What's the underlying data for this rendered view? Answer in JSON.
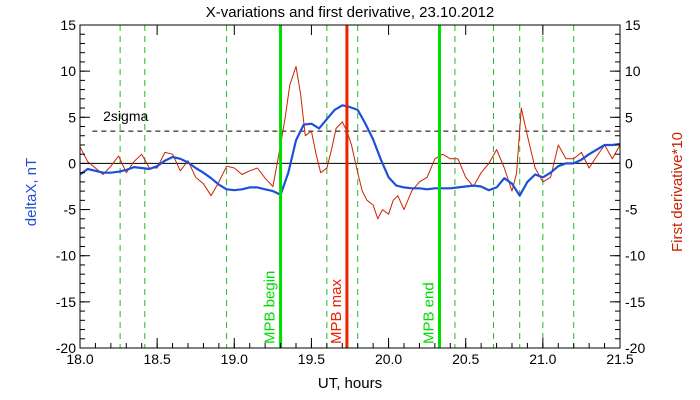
{
  "chart_data": {
    "type": "line",
    "title": "X-variations and first derivative, 23.10.2012",
    "xlabel": "UT, hours",
    "ylabel_left": "deltaX, nT",
    "ylabel_right": "First derivative*10",
    "xlim": [
      18.0,
      21.5
    ],
    "ylim": [
      -20,
      15
    ],
    "x_ticks": [
      18.0,
      18.5,
      19.0,
      19.5,
      20.0,
      20.5,
      21.0,
      21.5
    ],
    "x_tick_labels": [
      "18.0",
      "18.5",
      "19.0",
      "19.5",
      "20.0",
      "20.5",
      "21.0",
      "21.5"
    ],
    "y_ticks": [
      -20,
      -15,
      -10,
      -5,
      0,
      5,
      10,
      15
    ],
    "y_tick_labels": [
      "-20",
      "-15",
      "-10",
      "-5",
      "0",
      "5",
      "10",
      "15"
    ],
    "grid": false,
    "colors": {
      "deltaX": "#1f4fd8",
      "derivative": "#cc2200",
      "mpb_lines": "#00dd00",
      "mpb_max_line": "#ee2200",
      "dashed_green": "#22bb22",
      "sigma_line": "#000000"
    },
    "threshold": {
      "label": "2sigma",
      "value": 3.5
    },
    "zero_line": 0,
    "series": [
      {
        "axis": "left",
        "x": [
          18.0,
          18.05,
          18.1,
          18.15,
          18.2,
          18.25,
          18.3,
          18.35,
          18.4,
          18.45,
          18.5,
          18.55,
          18.6,
          18.65,
          18.7,
          18.75,
          18.8,
          18.85,
          18.9,
          18.95,
          19.0,
          19.05,
          19.1,
          19.15,
          19.2,
          19.25,
          19.3,
          19.35,
          19.4,
          19.45,
          19.5,
          19.55,
          19.6,
          19.65,
          19.7,
          19.75,
          19.8,
          19.85,
          19.9,
          19.95,
          20.0,
          20.05,
          20.1,
          20.15,
          20.2,
          20.25,
          20.3,
          20.35,
          20.4,
          20.45,
          20.5,
          20.55,
          20.6,
          20.65,
          20.7,
          20.75,
          20.8,
          20.85,
          20.9,
          20.95,
          21.0,
          21.05,
          21.1,
          21.15,
          21.2,
          21.25,
          21.3,
          21.35,
          21.4,
          21.45,
          21.5
        ],
        "values": [
          -1.2,
          -0.6,
          -0.8,
          -1.0,
          -1.0,
          -0.9,
          -0.7,
          -0.4,
          -0.5,
          -0.6,
          -0.3,
          0.3,
          0.7,
          0.5,
          0.1,
          -0.5,
          -1.0,
          -1.6,
          -2.3,
          -2.8,
          -2.9,
          -2.8,
          -2.6,
          -2.6,
          -2.8,
          -3.0,
          -3.4,
          -1.0,
          2.5,
          4.2,
          4.3,
          3.8,
          4.8,
          5.8,
          6.3,
          6.1,
          5.8,
          4.3,
          2.6,
          0.4,
          -1.5,
          -2.4,
          -2.6,
          -2.7,
          -2.7,
          -2.8,
          -2.7,
          -2.7,
          -2.7,
          -2.6,
          -2.5,
          -2.4,
          -2.5,
          -2.9,
          -2.6,
          -1.6,
          -2.2,
          -3.5,
          -2.0,
          -1.2,
          -1.5,
          -1.0,
          -0.3,
          0.0,
          0.0,
          0.4,
          1.0,
          1.5,
          2.0,
          2.0,
          2.1
        ]
      },
      {
        "axis": "right",
        "x": [
          18.0,
          18.05,
          18.1,
          18.15,
          18.2,
          18.25,
          18.3,
          18.35,
          18.4,
          18.45,
          18.5,
          18.55,
          18.6,
          18.65,
          18.7,
          18.75,
          18.8,
          18.85,
          18.9,
          18.95,
          19.0,
          19.05,
          19.1,
          19.15,
          19.2,
          19.25,
          19.3,
          19.33,
          19.36,
          19.4,
          19.43,
          19.46,
          19.5,
          19.53,
          19.56,
          19.6,
          19.63,
          19.66,
          19.7,
          19.73,
          19.76,
          19.8,
          19.83,
          19.86,
          19.9,
          19.93,
          19.96,
          20.0,
          20.03,
          20.06,
          20.1,
          20.15,
          20.2,
          20.25,
          20.3,
          20.35,
          20.4,
          20.45,
          20.5,
          20.55,
          20.6,
          20.65,
          20.7,
          20.75,
          20.8,
          20.83,
          20.86,
          20.9,
          20.95,
          21.0,
          21.05,
          21.1,
          21.15,
          21.2,
          21.25,
          21.3,
          21.35,
          21.4,
          21.45,
          21.5
        ],
        "values": [
          1.8,
          0.2,
          -0.5,
          -1.2,
          -0.3,
          0.8,
          -1.0,
          0.2,
          1.0,
          -0.5,
          -0.5,
          1.2,
          1.0,
          -0.8,
          0.3,
          -1.5,
          -2.2,
          -3.5,
          -2.0,
          -0.3,
          -0.5,
          -1.2,
          -0.8,
          -0.5,
          -1.6,
          -2.5,
          2.0,
          5.0,
          8.5,
          10.5,
          7.5,
          3.0,
          3.5,
          1.0,
          -1.0,
          -0.5,
          1.5,
          3.8,
          4.5,
          3.5,
          2.0,
          -1.0,
          -3.0,
          -4.0,
          -4.5,
          -6.0,
          -5.0,
          -5.5,
          -4.0,
          -3.5,
          -5.0,
          -3.0,
          -2.0,
          -1.5,
          0.5,
          1.0,
          0.5,
          0.5,
          -1.5,
          -2.5,
          -1.0,
          0.0,
          1.5,
          -0.5,
          -3.0,
          -1.0,
          6.0,
          3.0,
          -0.5,
          -2.0,
          -1.5,
          2.0,
          0.5,
          0.5,
          1.2,
          -0.5,
          0.8,
          2.0,
          0.5,
          2.0
        ]
      }
    ],
    "vertical_markers": [
      {
        "x": 19.3,
        "label": "MPB begin",
        "style": "solid",
        "color": "#00dd00"
      },
      {
        "x": 19.73,
        "label": "MPB max",
        "style": "solid",
        "color": "#ee2200"
      },
      {
        "x": 20.33,
        "label": "MPB end",
        "style": "solid",
        "color": "#00dd00"
      }
    ],
    "dashed_markers": [
      18.26,
      18.42,
      18.95,
      19.6,
      19.8,
      20.43,
      20.68,
      20.85,
      21.0,
      21.2
    ]
  }
}
